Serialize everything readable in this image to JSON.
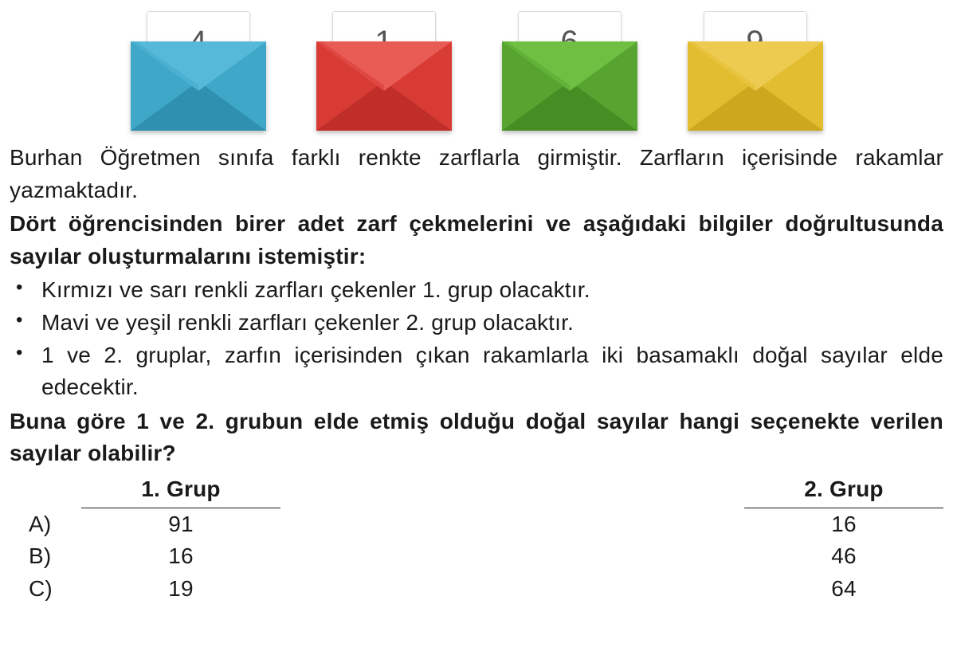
{
  "envelopes": [
    {
      "number": "4",
      "body": "#3fa8c9",
      "bodyDark": "#2f90b0",
      "flap": "#57b9d9",
      "flapDark": "#3fa8c9"
    },
    {
      "number": "1",
      "body": "#d83a34",
      "bodyDark": "#bf2e29",
      "flap": "#e95b55",
      "flapDark": "#d83a34"
    },
    {
      "number": "6",
      "body": "#57a530",
      "bodyDark": "#468d24",
      "flap": "#6fbf43",
      "flapDark": "#57a530"
    },
    {
      "number": "9",
      "body": "#e3bd30",
      "bodyDark": "#cda81e",
      "flap": "#eccb50",
      "flapDark": "#e3bd30"
    }
  ],
  "text": {
    "p1": "Burhan Öğretmen sınıfa farklı renkte zarflarla girmiştir. Zarfların içerisinde rakamlar yazmaktadır.",
    "p2": "Dört öğrencisinden birer adet zarf çekmelerini ve aşağıdaki bilgiler doğrultusunda sayılar oluşturmalarını istemiştir:",
    "b1": "Kırmızı ve sarı renkli zarfları çekenler 1. grup olacaktır.",
    "b2": "Mavi ve yeşil renkli zarfları çekenler 2. grup olacaktır.",
    "b3": "1 ve 2. gruplar, zarfın içerisinden çıkan rakamlarla iki basamaklı doğal sayılar elde edecektir.",
    "q": "Buna göre 1 ve 2. grubun elde etmiş olduğu doğal sayılar hangi seçenekte verilen sayılar olabilir?"
  },
  "table": {
    "h1": "1. Grup",
    "h2": "2. Grup",
    "rows": [
      {
        "letter": "A)",
        "c1": "91",
        "c2": "16"
      },
      {
        "letter": "B)",
        "c1": "16",
        "c2": "46"
      },
      {
        "letter": "C)",
        "c1": "19",
        "c2": "64"
      }
    ]
  }
}
